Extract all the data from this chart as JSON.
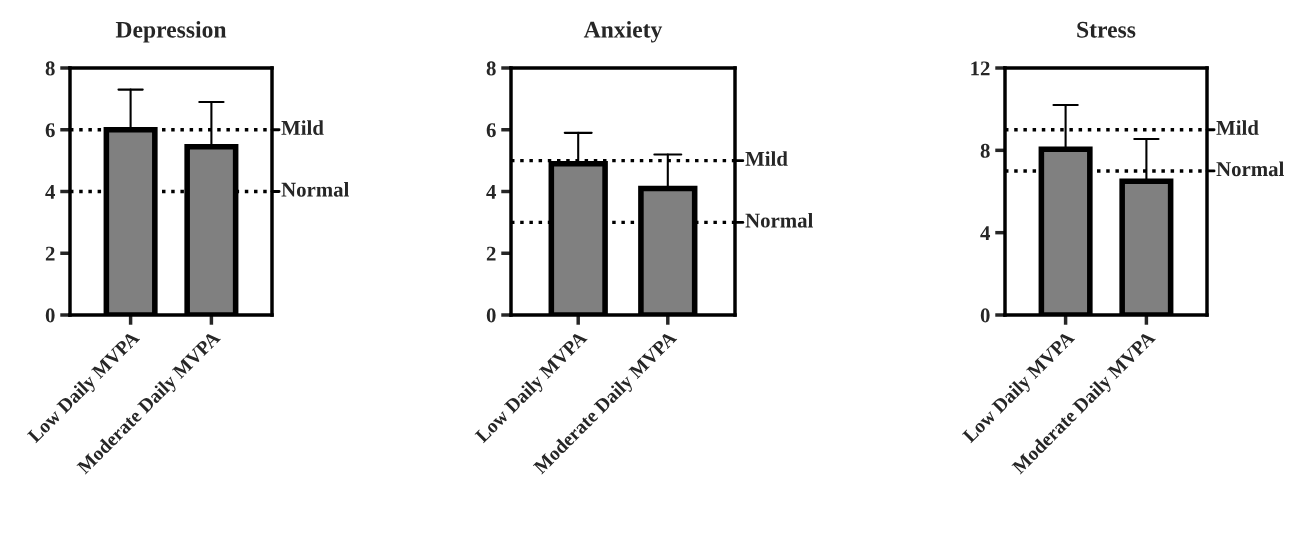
{
  "chart_data": [
    {
      "type": "bar",
      "title": "Depression",
      "categories": [
        "Low Daily MVPA",
        "Moderate Daily MVPA"
      ],
      "values": [
        6.0,
        5.45
      ],
      "errors": [
        [
          6.0,
          7.3
        ],
        [
          5.45,
          6.9
        ]
      ],
      "colors": [
        "#808080",
        "#808080"
      ],
      "ylim": [
        0,
        8
      ],
      "yticks": [
        0,
        2,
        4,
        6,
        8
      ],
      "grid": false,
      "legend": false,
      "ref_lines": [
        {
          "axis": "y",
          "value": 6,
          "label": "Mild",
          "line_style": "dotted"
        },
        {
          "axis": "y",
          "value": 4,
          "label": "Normal",
          "line_style": "dotted"
        }
      ]
    },
    {
      "type": "bar",
      "title": "Anxiety",
      "categories": [
        "Low Daily MVPA",
        "Moderate Daily MVPA"
      ],
      "values": [
        4.9,
        4.1
      ],
      "errors": [
        [
          4.9,
          5.9
        ],
        [
          4.1,
          5.2
        ]
      ],
      "colors": [
        "#808080",
        "#808080"
      ],
      "ylim": [
        0,
        8
      ],
      "yticks": [
        0,
        2,
        4,
        6,
        8
      ],
      "grid": false,
      "legend": false,
      "ref_lines": [
        {
          "axis": "y",
          "value": 5,
          "label": "Mild",
          "line_style": "dotted"
        },
        {
          "axis": "y",
          "value": 3,
          "label": "Normal",
          "line_style": "dotted"
        }
      ]
    },
    {
      "type": "bar",
      "title": "Stress",
      "categories": [
        "Low Daily MVPA",
        "Moderate Daily MVPA"
      ],
      "values": [
        8.05,
        6.5
      ],
      "errors": [
        [
          8.05,
          10.2
        ],
        [
          6.5,
          8.55
        ]
      ],
      "colors": [
        "#808080",
        "#808080"
      ],
      "ylim": [
        0,
        12
      ],
      "yticks": [
        0,
        4,
        8,
        12
      ],
      "grid": false,
      "legend": false,
      "ref_lines": [
        {
          "axis": "y",
          "value": 9,
          "label": "Mild",
          "line_style": "dotted"
        },
        {
          "axis": "y",
          "value": 7,
          "label": "Normal",
          "line_style": "dotted"
        }
      ]
    }
  ]
}
